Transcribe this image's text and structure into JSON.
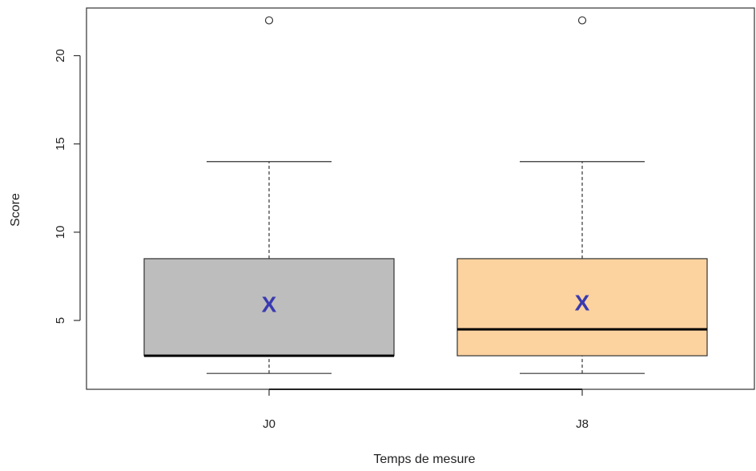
{
  "chart_data": {
    "type": "boxplot",
    "title": "",
    "xlabel": "Temps de mesure",
    "ylabel": "Score",
    "ylim": [
      1.1,
      22.7
    ],
    "yticks": [
      5,
      10,
      15,
      20
    ],
    "grid": false,
    "mean_marker": "X",
    "colors": {
      "mean_marker": "#3a3ab0"
    },
    "series": [
      {
        "name": "J0",
        "fill": "#bdbdbd",
        "whisker_low": 2,
        "q1": 3,
        "median": 3,
        "q3": 8.5,
        "whisker_high": 14,
        "mean": 5.9,
        "outliers": [
          22
        ]
      },
      {
        "name": "J8",
        "fill": "#fcd29f",
        "whisker_low": 2,
        "q1": 3,
        "median": 4.5,
        "q3": 8.5,
        "whisker_high": 14,
        "mean": 6.0,
        "outliers": [
          22
        ]
      }
    ]
  }
}
